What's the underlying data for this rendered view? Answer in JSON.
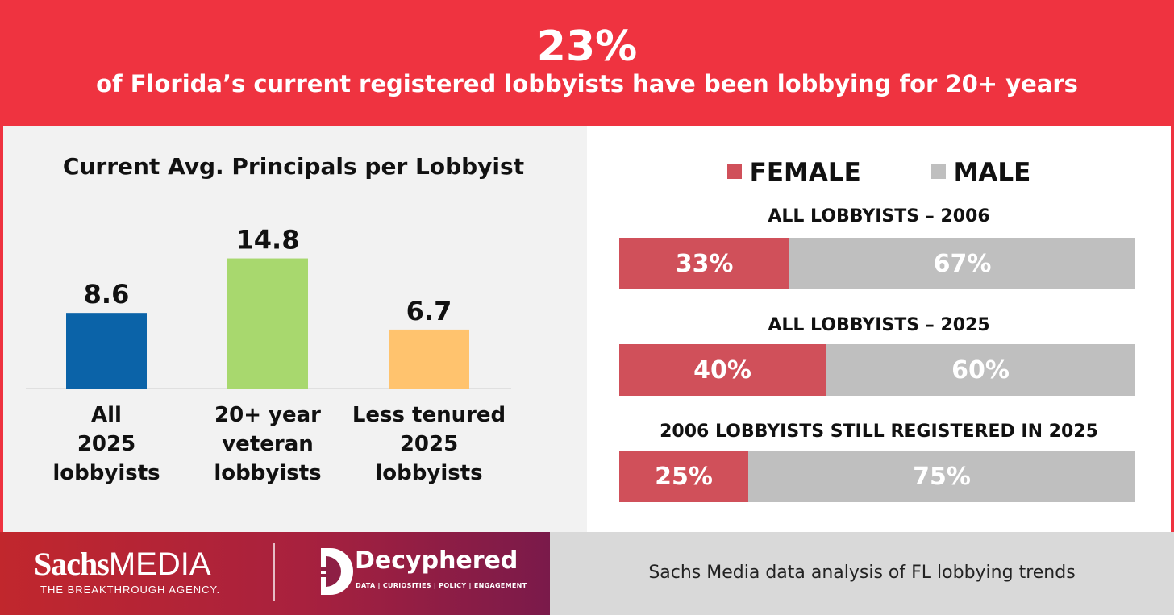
{
  "header": {
    "headline": "23%",
    "subheadline": "of Florida’s current registered lobbyists have been lobbying for 20+ years"
  },
  "chart_data": [
    {
      "type": "bar",
      "title": "Current Avg. Principals per Lobbyist",
      "categories": [
        [
          "All",
          "2025",
          "lobbyists"
        ],
        [
          "20+ year",
          "veteran",
          "lobbyists"
        ],
        [
          "Less tenured",
          "2025",
          "lobbyists"
        ]
      ],
      "values": [
        8.6,
        14.8,
        6.7
      ],
      "value_labels": [
        "8.6",
        "14.8",
        "6.7"
      ],
      "colors": [
        "#0b63a8",
        "#a8d86e",
        "#ffc36e"
      ],
      "ylim": [
        0,
        16.5
      ],
      "grid": false,
      "xlabel": "",
      "ylabel": ""
    },
    {
      "type": "bar",
      "orientation": "horizontal-stacked-100",
      "legend": [
        "FEMALE",
        "MALE"
      ],
      "legend_colors": [
        "#d0505a",
        "#bfbfbf"
      ],
      "legend_position": "top",
      "groups": [
        {
          "title": "ALL LOBBYISTS – 2006",
          "female": 33,
          "male": 67,
          "female_label": "33%",
          "male_label": "67%"
        },
        {
          "title": "ALL LOBBYISTS – 2025",
          "female": 40,
          "male": 60,
          "female_label": "40%",
          "male_label": "60%"
        },
        {
          "title": "2006 LOBBYISTS STILL REGISTERED IN 2025",
          "female": 25,
          "male": 75,
          "female_label": "25%",
          "male_label": "75%"
        }
      ]
    }
  ],
  "footer": {
    "brand_part1": "Sachs",
    "brand_part2": "MEDIA",
    "tagline": "THE BREAKTHROUGH AGENCY.",
    "partner_name": "Decyphered",
    "partner_tagline": "DATA | CURIOSITIES | POLICY | ENGAGEMENT",
    "source": "Sachs Media data analysis of FL lobbying trends"
  }
}
